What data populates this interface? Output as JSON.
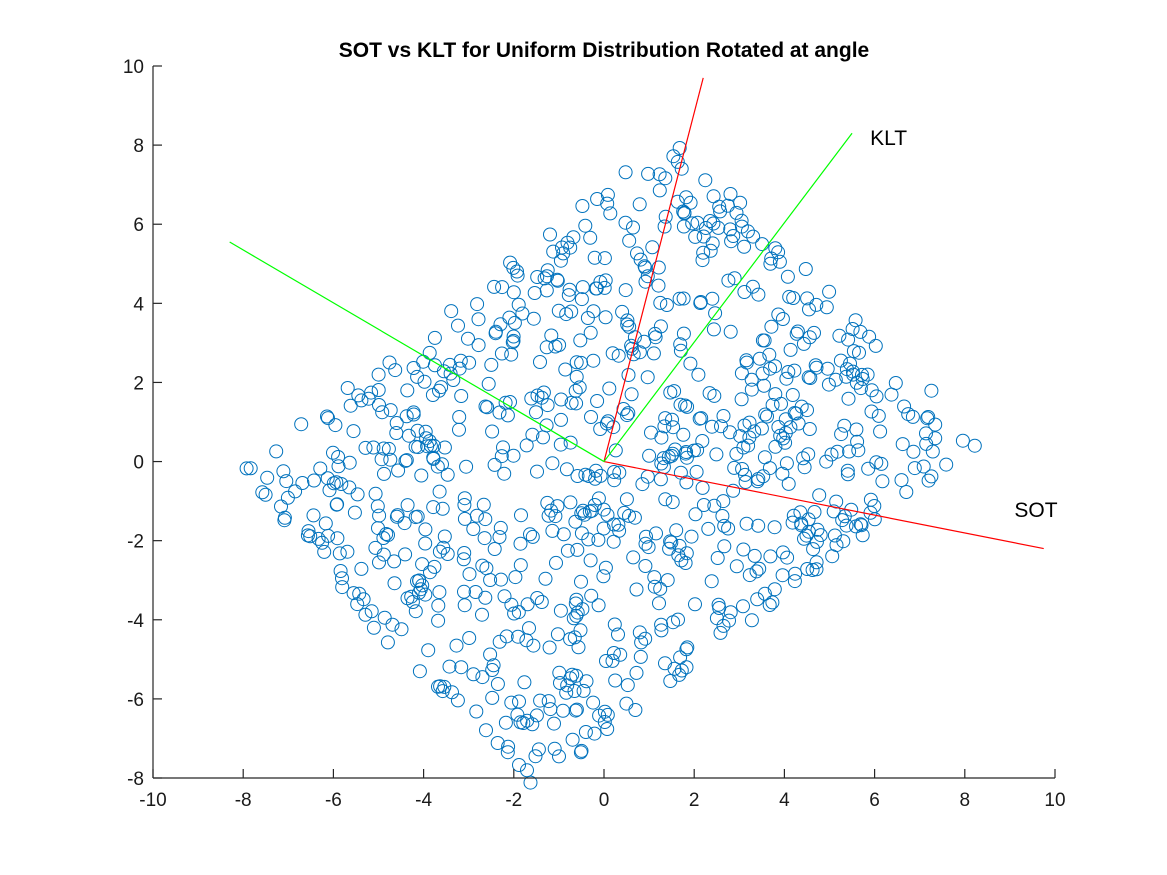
{
  "chart_data": {
    "type": "scatter",
    "title": "SOT vs KLT for Uniform Distribution Rotated at angle",
    "xlabel": "",
    "ylabel": "",
    "xlim": [
      -10,
      10
    ],
    "ylim": [
      -8,
      10
    ],
    "xticks": [
      -10,
      -8,
      -6,
      -4,
      -2,
      0,
      2,
      4,
      6,
      8,
      10
    ],
    "yticks": [
      -8,
      -6,
      -4,
      -2,
      0,
      2,
      4,
      6,
      8,
      10
    ],
    "grid": false,
    "legend": "none",
    "colors": {
      "points": "#0072bd",
      "sot": "#ff0000",
      "klt": "#00ff00"
    },
    "lines": [
      {
        "name": "SOT",
        "color": "#ff0000",
        "segments": [
          [
            [
              0,
              0
            ],
            [
              2.2,
              9.7
            ]
          ],
          [
            [
              0,
              0
            ],
            [
              9.75,
              -2.2
            ]
          ]
        ]
      },
      {
        "name": "KLT",
        "color": "#00ff00",
        "segments": [
          [
            [
              0,
              0
            ],
            [
              5.5,
              8.3
            ]
          ],
          [
            [
              0,
              0
            ],
            [
              -8.3,
              5.55
            ]
          ]
        ]
      }
    ],
    "annotations": [
      {
        "text": "KLT",
        "x": 5.9,
        "y": 8.0
      },
      {
        "text": "SOT",
        "x": 9.1,
        "y": -1.4
      }
    ],
    "points": {
      "distribution": "uniform square rotated",
      "count": 900,
      "corners": [
        [
          -6.5,
          1.6
        ],
        [
          1.8,
          6.5
        ],
        [
          6.4,
          -1.6
        ],
        [
          -1.8,
          -6.7
        ]
      ],
      "shape": "rect-u-v",
      "axes": {
        "u": [
          0.75,
          0.66
        ],
        "v": [
          -0.66,
          0.75
        ],
        "u_half": 6.65,
        "v_half": 5.2,
        "center": [
          0,
          0
        ]
      }
    }
  }
}
